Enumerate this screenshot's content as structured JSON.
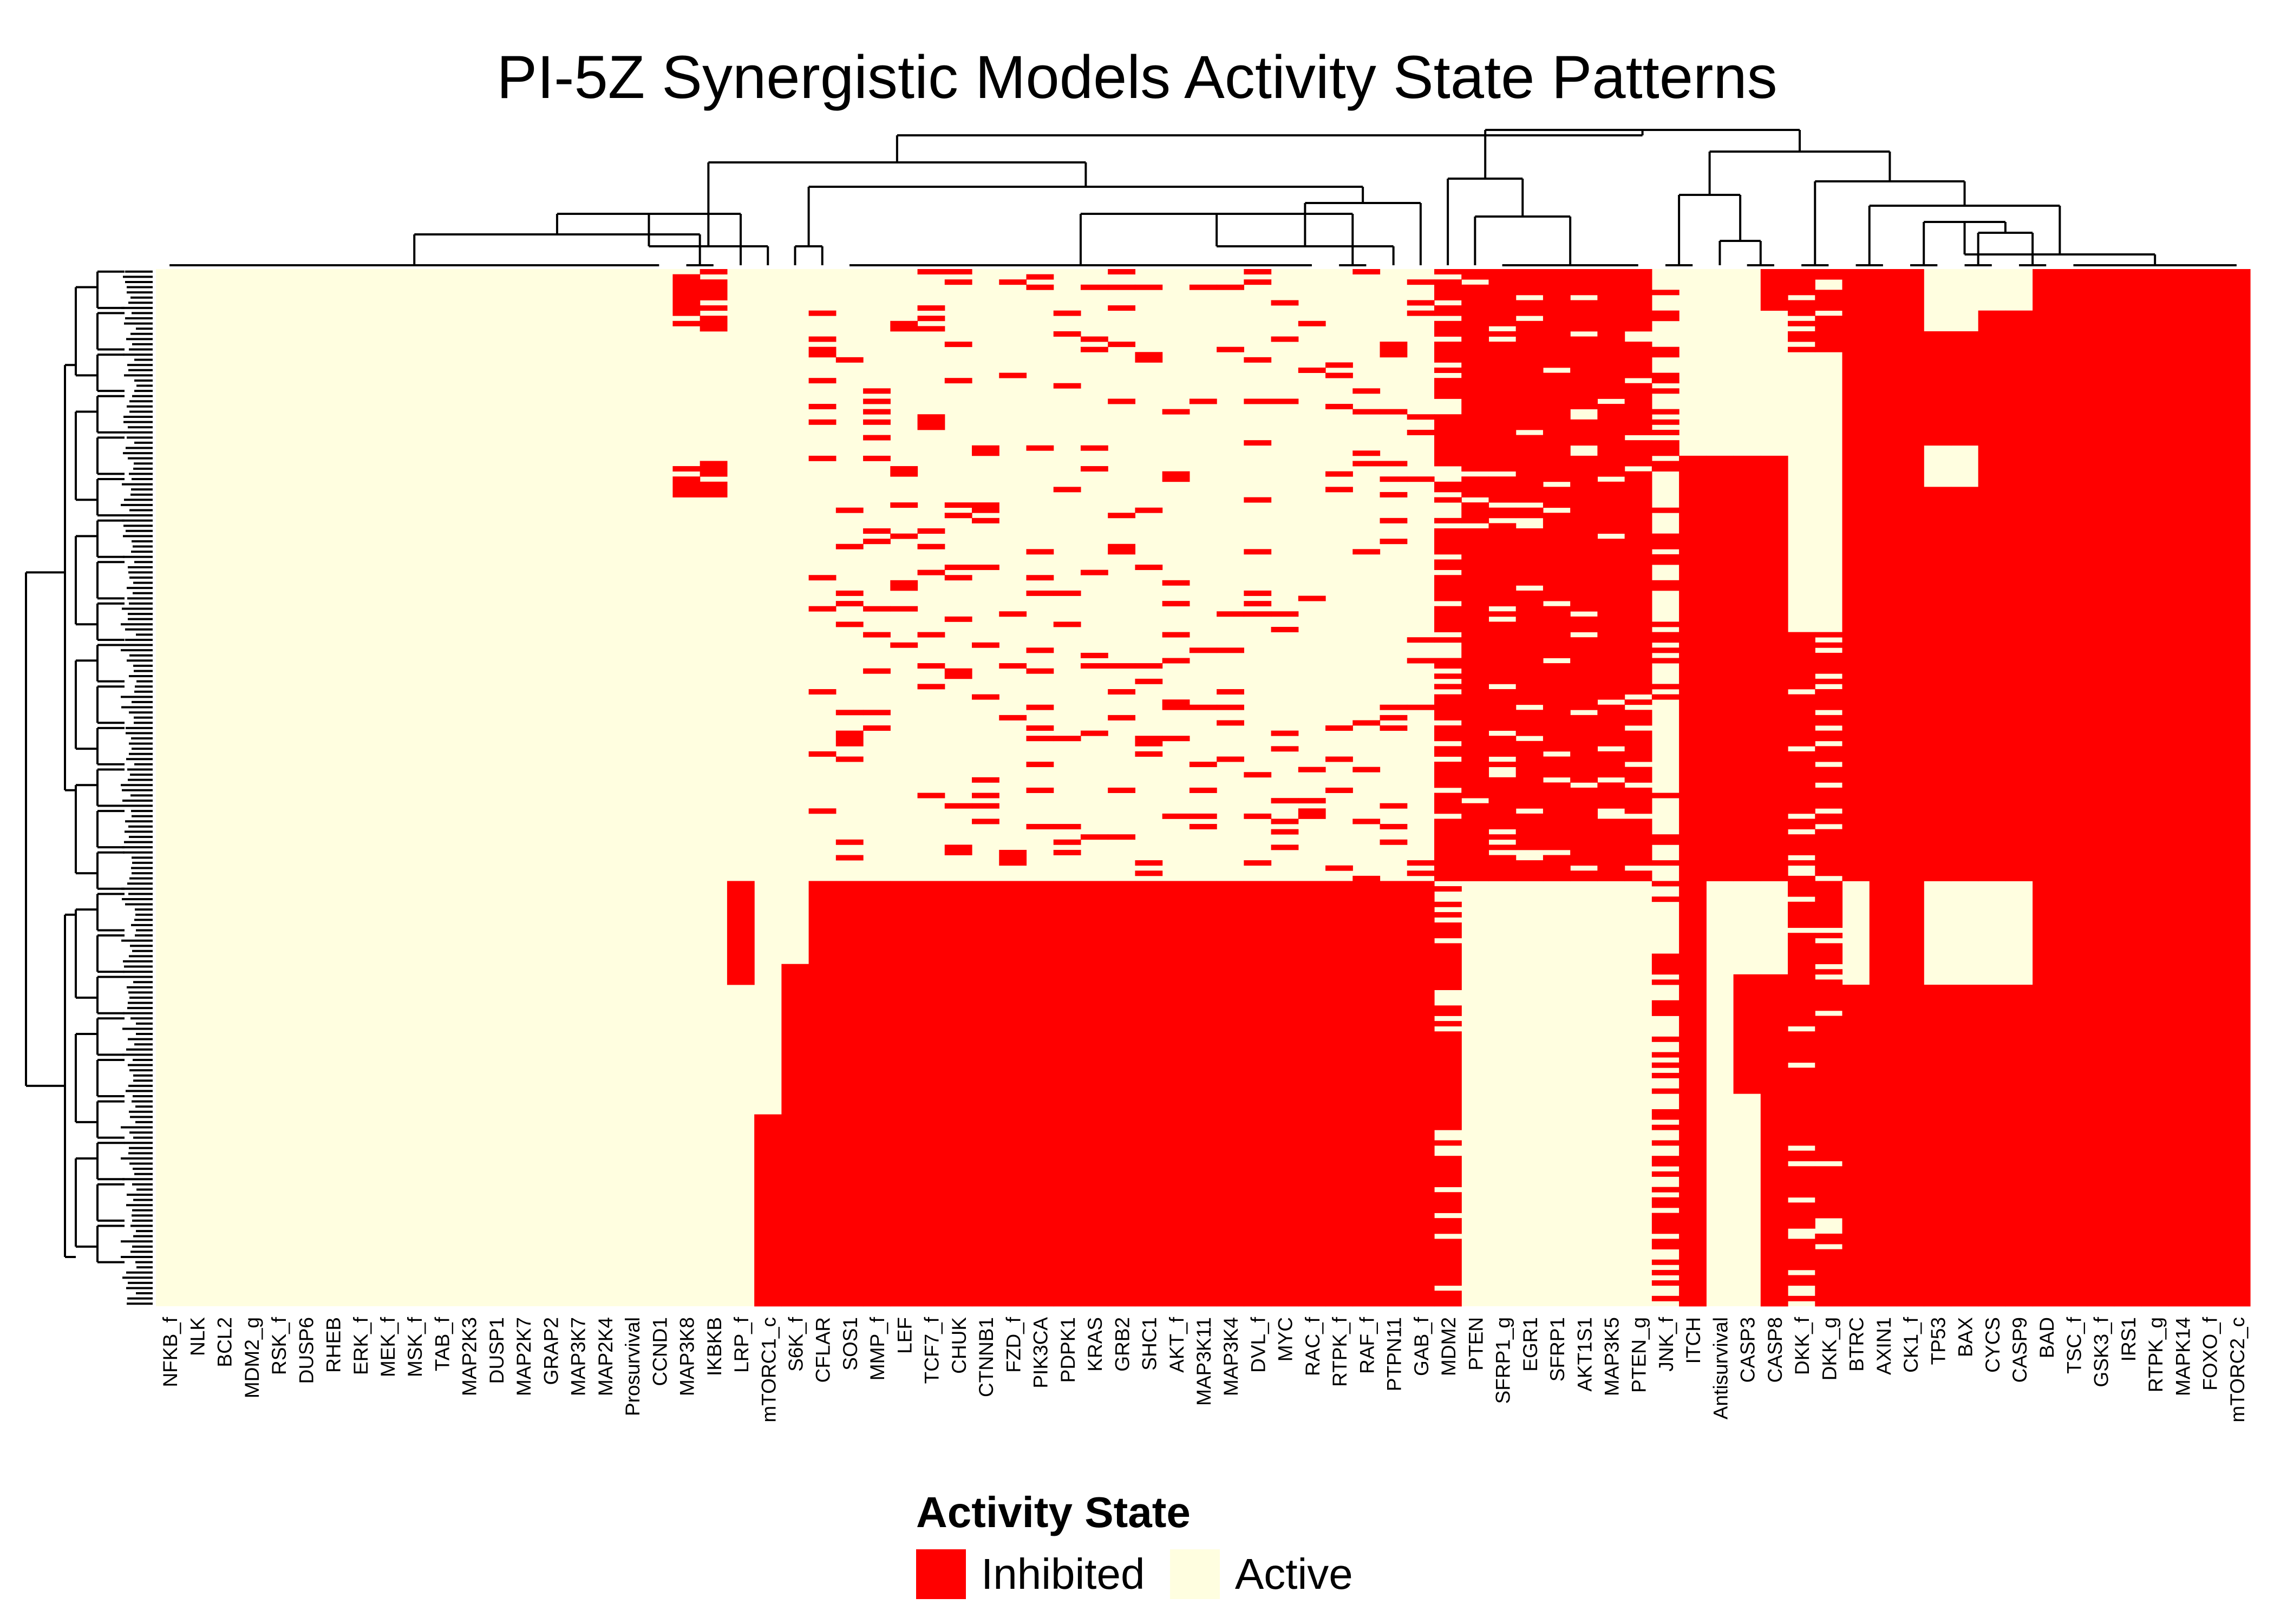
{
  "chart_data": {
    "type": "heatmap",
    "title": "PI-5Z Synergistic Models Activity State Patterns",
    "columns": [
      "NFKB_f",
      "NLK",
      "BCL2",
      "MDM2_g",
      "RSK_f",
      "DUSP6",
      "RHEB",
      "ERK_f",
      "MEK_f",
      "MSK_f",
      "TAB_f",
      "MAP2K3",
      "DUSP1",
      "MAP2K7",
      "GRAP2",
      "MAP3K7",
      "MAP2K4",
      "Prosurvival",
      "CCND1",
      "MAP3K8",
      "IKBKB",
      "LRP_f",
      "mTORC1_c",
      "S6K_f",
      "CFLAR",
      "SOS1",
      "MMP_f",
      "LEF",
      "TCF7_f",
      "CHUK",
      "CTNNB1",
      "FZD_f",
      "PIK3CA",
      "PDPK1",
      "KRAS",
      "GRB2",
      "SHC1",
      "AKT_f",
      "MAP3K11",
      "MAP3K4",
      "DVL_f",
      "MYC",
      "RAC_f",
      "RTPK_f",
      "RAF_f",
      "PTPN11",
      "GAB_f",
      "MDM2",
      "PTEN",
      "SFRP1_g",
      "EGR1",
      "SFRP1",
      "AKT1S1",
      "MAP3K5",
      "PTEN_g",
      "JNK_f",
      "ITCH",
      "Antisurvival",
      "CASP3",
      "CASP8",
      "DKK_f",
      "DKK_g",
      "BTRC",
      "AXIN1",
      "CK1_f",
      "TP53",
      "BAX",
      "CYCS",
      "CASP9",
      "BAD",
      "TSC_f",
      "GSK3_f",
      "IRS1",
      "RTPK_g",
      "MAPK14",
      "FOXO_f",
      "mTORC2_c"
    ],
    "row_count": 200,
    "values_note": "0 = Inhibited, 1 = Active",
    "column_patterns": {
      "always_active": [
        "NFKB_f",
        "NLK",
        "BCL2",
        "MDM2_g",
        "RSK_f",
        "DUSP6",
        "RHEB",
        "ERK_f",
        "MEK_f",
        "MSK_f",
        "TAB_f",
        "MAP2K3",
        "DUSP1",
        "MAP2K7",
        "GRAP2",
        "MAP3K7",
        "MAP2K4",
        "Prosurvival",
        "CCND1"
      ],
      "always_inhibited": [
        "AXIN1",
        "CK1_f",
        "BAD",
        "TSC_f",
        "GSK3_f",
        "IRS1",
        "RTPK_g",
        "MAPK14",
        "FOXO_f",
        "mTORC2_c"
      ],
      "inhibited_in_bottom_cluster": [
        "CFLAR",
        "SOS1",
        "MMP_f",
        "LEF",
        "TCF7_f",
        "CHUK",
        "CTNNB1",
        "FZD_f",
        "PIK3CA",
        "PDPK1",
        "KRAS",
        "GRB2",
        "SHC1",
        "AKT_f",
        "MAP3K11",
        "MAP3K4",
        "DVL_f",
        "MYC",
        "RAC_f",
        "RTPK_f",
        "RAF_f",
        "PTPN11",
        "GAB_f"
      ],
      "active_in_bottom_cluster": [
        "PTEN",
        "SFRP1_g",
        "EGR1",
        "SFRP1",
        "AKT1S1",
        "MAP3K5",
        "PTEN_g"
      ],
      "partial_top_rows_inhibited": [
        "MAP3K8",
        "IKBKB"
      ],
      "mixed": [
        "LRP_f",
        "mTORC1_c",
        "S6K_f",
        "MDM2",
        "JNK_f",
        "ITCH",
        "Antisurvival",
        "CASP3",
        "CASP8",
        "DKK_f",
        "DKK_g",
        "BTRC",
        "TP53",
        "BAX",
        "CYCS",
        "CASP9"
      ]
    },
    "row_clusters": [
      {
        "cluster": "top",
        "rows": [
          0,
          118
        ]
      },
      {
        "cluster": "bottom",
        "rows": [
          118,
          200
        ]
      }
    ],
    "legend": {
      "title": "Activity State",
      "entries": [
        {
          "label": "Inhibited",
          "color": "#ff0000"
        },
        {
          "label": "Active",
          "color": "#fffee0"
        }
      ],
      "placement": "bottom-center"
    }
  }
}
